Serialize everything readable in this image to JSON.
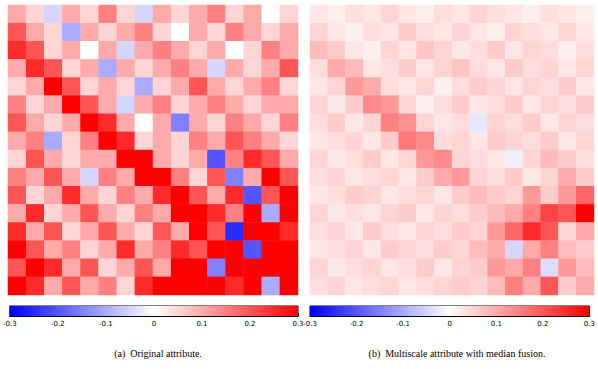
{
  "chart_data": [
    {
      "type": "heatmap",
      "title": "(a)  Original attribute.",
      "tick_labels": false,
      "colorbar_range": [
        -0.3,
        0.3
      ],
      "colorbar_ticks": [
        -0.3,
        -0.2,
        -0.1,
        0,
        0.1,
        0.2,
        0.3
      ],
      "cells": [
        [
          0.1,
          0.05,
          -0.05,
          0.1,
          0.05,
          0.15,
          0.05,
          -0.05,
          0.1,
          0.05,
          0.1,
          0.15,
          0.05,
          0.1,
          0.0,
          0.05
        ],
        [
          0.2,
          0.1,
          0.05,
          -0.1,
          0.1,
          0.05,
          0.1,
          0.15,
          0.05,
          0.0,
          0.1,
          0.05,
          0.15,
          0.1,
          0.05,
          0.1
        ],
        [
          0.25,
          0.2,
          0.05,
          0.1,
          0.0,
          0.1,
          -0.05,
          0.1,
          0.15,
          0.1,
          0.05,
          0.1,
          0.0,
          0.05,
          0.15,
          0.1
        ],
        [
          0.1,
          0.25,
          0.2,
          0.05,
          0.1,
          -0.1,
          0.1,
          0.05,
          0.1,
          0.15,
          0.1,
          -0.05,
          0.1,
          0.05,
          0.1,
          0.2
        ],
        [
          0.05,
          0.1,
          0.3,
          0.2,
          0.05,
          0.1,
          0.05,
          -0.1,
          0.05,
          0.1,
          0.2,
          0.1,
          0.05,
          0.1,
          0.15,
          0.05
        ],
        [
          0.15,
          0.05,
          0.1,
          0.3,
          0.2,
          0.1,
          -0.05,
          0.1,
          0.15,
          0.05,
          0.1,
          0.15,
          0.1,
          0.05,
          0.1,
          0.1
        ],
        [
          0.2,
          0.1,
          0.05,
          0.1,
          0.3,
          0.25,
          0.1,
          0.0,
          0.1,
          -0.15,
          0.1,
          0.05,
          0.15,
          0.1,
          0.05,
          0.15
        ],
        [
          0.1,
          0.15,
          -0.1,
          0.05,
          0.15,
          0.3,
          0.25,
          0.05,
          0.1,
          0.05,
          0.15,
          0.1,
          0.2,
          0.15,
          0.1,
          0.05
        ],
        [
          0.05,
          0.2,
          0.1,
          0.05,
          0.1,
          0.1,
          0.3,
          0.3,
          0.1,
          0.05,
          0.1,
          -0.2,
          0.15,
          0.25,
          0.2,
          0.1
        ],
        [
          0.15,
          0.1,
          0.2,
          0.1,
          -0.05,
          0.15,
          0.1,
          0.3,
          0.3,
          0.15,
          0.05,
          0.2,
          -0.15,
          0.1,
          0.3,
          0.2
        ],
        [
          0.2,
          0.05,
          0.1,
          0.25,
          0.1,
          0.05,
          0.15,
          0.1,
          0.25,
          0.3,
          0.2,
          0.1,
          0.25,
          -0.2,
          0.2,
          0.3
        ],
        [
          0.1,
          0.25,
          0.05,
          0.1,
          0.2,
          0.1,
          0.05,
          0.15,
          0.1,
          0.3,
          0.3,
          0.25,
          0.15,
          0.3,
          -0.1,
          0.3
        ],
        [
          0.25,
          0.1,
          0.2,
          0.05,
          0.1,
          0.2,
          0.1,
          0.05,
          0.2,
          0.1,
          0.3,
          0.2,
          -0.25,
          0.3,
          0.3,
          0.25
        ],
        [
          0.3,
          0.2,
          0.1,
          0.15,
          0.05,
          0.1,
          0.25,
          0.1,
          0.15,
          0.25,
          0.2,
          0.3,
          0.3,
          -0.2,
          0.3,
          0.3
        ],
        [
          0.2,
          0.3,
          0.25,
          0.1,
          0.2,
          0.05,
          0.1,
          0.2,
          0.1,
          0.3,
          0.3,
          -0.15,
          0.3,
          0.3,
          0.3,
          0.3
        ],
        [
          0.3,
          0.25,
          0.1,
          0.2,
          0.1,
          0.15,
          0.05,
          0.25,
          0.3,
          0.3,
          0.3,
          0.3,
          0.25,
          0.3,
          -0.1,
          0.3
        ]
      ]
    },
    {
      "type": "heatmap",
      "title": "(b)  Multiscale attribute with median fusion.",
      "tick_labels": false,
      "colorbar_range": [
        -0.3,
        0.3
      ],
      "colorbar_ticks": [
        -0.3,
        -0.2,
        -0.1,
        0,
        0.1,
        0.2,
        0.3
      ],
      "cells": [
        [
          0.03,
          0.02,
          0.04,
          0.03,
          0.05,
          0.03,
          0.02,
          0.04,
          0.03,
          0.05,
          0.04,
          0.03,
          0.02,
          0.04,
          0.03,
          0.02
        ],
        [
          0.05,
          0.03,
          0.02,
          0.04,
          0.03,
          0.06,
          0.04,
          0.03,
          0.05,
          0.03,
          0.02,
          0.05,
          0.04,
          0.03,
          0.05,
          0.03
        ],
        [
          0.08,
          0.06,
          0.03,
          0.02,
          0.05,
          0.03,
          0.07,
          0.05,
          0.03,
          0.04,
          0.06,
          0.03,
          0.05,
          0.04,
          0.02,
          0.04
        ],
        [
          0.04,
          0.1,
          0.08,
          0.03,
          0.04,
          0.06,
          0.03,
          0.05,
          0.07,
          0.04,
          0.03,
          0.06,
          0.04,
          0.05,
          0.03,
          0.05
        ],
        [
          0.03,
          0.05,
          0.12,
          0.1,
          0.04,
          0.03,
          0.05,
          0.02,
          0.04,
          0.06,
          0.05,
          0.03,
          0.05,
          0.04,
          0.06,
          0.03
        ],
        [
          0.05,
          0.03,
          0.06,
          0.14,
          0.12,
          0.05,
          0.02,
          0.04,
          0.06,
          0.03,
          0.04,
          0.06,
          0.03,
          0.05,
          0.04,
          0.06
        ],
        [
          0.04,
          0.06,
          0.03,
          0.05,
          0.15,
          0.13,
          0.05,
          0.03,
          0.04,
          -0.03,
          0.05,
          0.04,
          0.06,
          0.03,
          0.05,
          0.04
        ],
        [
          0.03,
          0.04,
          0.05,
          0.03,
          0.06,
          0.16,
          0.14,
          0.04,
          0.05,
          0.03,
          0.06,
          0.05,
          0.04,
          0.06,
          0.03,
          0.05
        ],
        [
          0.05,
          0.03,
          0.04,
          0.06,
          0.03,
          0.05,
          0.12,
          0.14,
          0.05,
          0.04,
          0.03,
          -0.02,
          0.05,
          0.08,
          0.06,
          0.04
        ],
        [
          0.04,
          0.05,
          0.03,
          0.04,
          0.05,
          0.03,
          0.06,
          0.1,
          0.12,
          0.05,
          0.04,
          0.06,
          0.03,
          0.05,
          0.1,
          0.06
        ],
        [
          0.03,
          0.04,
          0.06,
          0.05,
          0.03,
          0.04,
          0.05,
          0.03,
          0.06,
          0.08,
          0.06,
          0.05,
          0.12,
          0.06,
          0.12,
          0.18
        ],
        [
          0.05,
          0.03,
          0.04,
          0.03,
          0.05,
          0.06,
          0.03,
          0.05,
          0.04,
          0.06,
          0.08,
          0.1,
          0.15,
          0.22,
          0.2,
          0.3
        ],
        [
          0.04,
          0.05,
          0.03,
          0.06,
          0.04,
          0.03,
          0.05,
          0.04,
          0.06,
          0.05,
          0.12,
          0.18,
          0.25,
          0.2,
          0.05,
          0.1
        ],
        [
          0.03,
          0.04,
          0.05,
          0.03,
          0.06,
          0.05,
          0.04,
          0.06,
          0.05,
          0.08,
          0.1,
          -0.05,
          0.1,
          0.15,
          0.08,
          0.06
        ],
        [
          0.05,
          0.03,
          0.04,
          0.05,
          0.03,
          0.04,
          0.06,
          0.03,
          0.05,
          0.06,
          0.12,
          0.1,
          0.15,
          -0.04,
          0.12,
          0.08
        ],
        [
          0.04,
          0.05,
          0.03,
          0.04,
          0.05,
          0.03,
          0.04,
          0.05,
          0.06,
          0.05,
          0.08,
          0.15,
          0.1,
          0.2,
          0.06,
          0.1
        ]
      ]
    }
  ]
}
